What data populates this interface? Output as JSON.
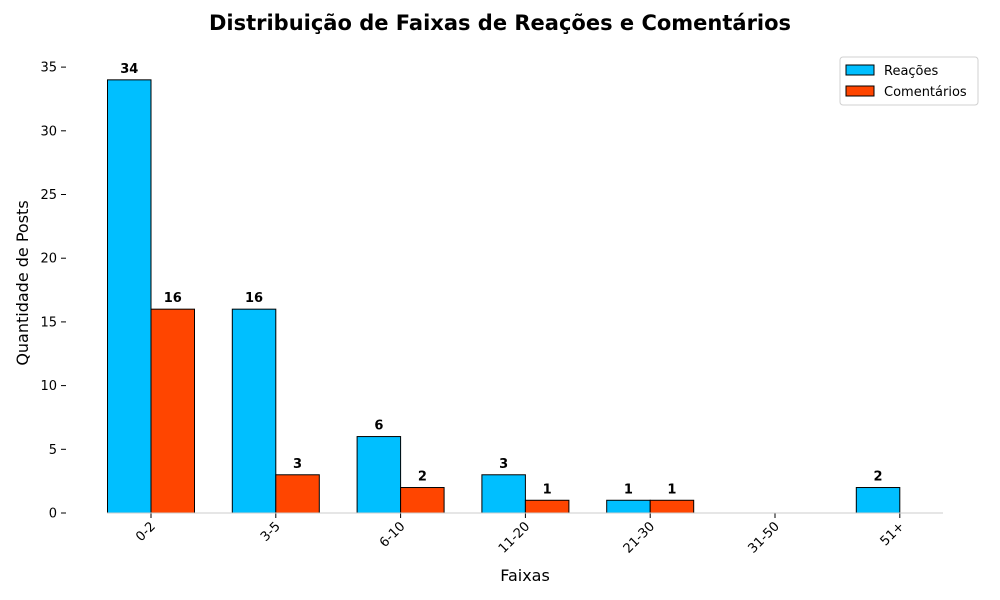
{
  "chart_data": {
    "type": "bar",
    "title": "Distribuição de Faixas de Reações e Comentários",
    "xlabel": "Faixas",
    "ylabel": "Quantidade de Posts",
    "categories": [
      "0-2",
      "3-5",
      "6-10",
      "11-20",
      "21-30",
      "31-50",
      "51+"
    ],
    "series": [
      {
        "name": "Reações",
        "values": [
          34,
          16,
          6,
          3,
          1,
          0,
          2
        ],
        "color": "#00BFFF"
      },
      {
        "name": "Comentários",
        "values": [
          16,
          3,
          2,
          1,
          1,
          0,
          0
        ],
        "color": "#FF4500"
      }
    ],
    "ylim": [
      0,
      35
    ],
    "yticks": [
      0,
      5,
      10,
      15,
      20,
      25,
      30,
      35
    ],
    "data_labels": {
      "Reações": [
        "34",
        "16",
        "6",
        "3",
        "1",
        "",
        "2"
      ],
      "Comentários": [
        "16",
        "3",
        "2",
        "1",
        "1",
        "",
        ""
      ]
    },
    "legend_position": "top-right",
    "grid": false,
    "xtick_rotation": 45
  }
}
